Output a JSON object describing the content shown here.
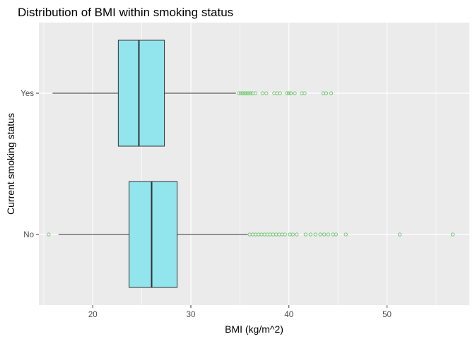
{
  "chart_data": {
    "type": "boxplot",
    "orientation": "horizontal",
    "title": "Distribution of BMI within smoking status",
    "xlabel": "BMI (kg/m^2)",
    "ylabel": "Current smoking status",
    "xlim": [
      14.5,
      58.4
    ],
    "x_ticks": [
      20,
      30,
      40,
      50
    ],
    "x_tick_labels": [
      "20",
      "30",
      "40",
      "50"
    ],
    "x_minor_ticks": [
      15,
      25,
      35,
      45,
      55
    ],
    "grid": true,
    "colors": {
      "panel_background": "#ebebeb",
      "grid": "#ffffff",
      "box_fill": "#92e4ed",
      "box_stroke": "#333333",
      "outlier": "#6cc56c"
    },
    "categories": [
      "Yes",
      "No"
    ],
    "boxes": [
      {
        "category": "Yes",
        "whisker_low": 15.9,
        "q1": 22.6,
        "median": 24.7,
        "q3": 27.3,
        "whisker_high": 34.6,
        "outliers": [
          34.9,
          35.1,
          35.3,
          35.5,
          35.7,
          35.9,
          36.1,
          36.3,
          36.6,
          37.3,
          37.7,
          38.5,
          38.8,
          39.1,
          39.8,
          40.0,
          40.2,
          40.6,
          41.3,
          41.6,
          43.5,
          43.8,
          44.3
        ]
      },
      {
        "category": "No",
        "whisker_low": 16.5,
        "q1": 23.7,
        "median": 26.0,
        "q3": 28.6,
        "whisker_high": 35.8,
        "outliers": [
          15.5,
          36.0,
          36.3,
          36.6,
          36.9,
          37.2,
          37.5,
          37.8,
          38.1,
          38.4,
          38.7,
          39.0,
          39.3,
          39.6,
          40.1,
          40.4,
          40.8,
          41.7,
          42.2,
          42.7,
          43.2,
          43.6,
          44.0,
          44.5,
          44.8,
          45.8,
          51.3,
          56.7
        ]
      }
    ]
  }
}
